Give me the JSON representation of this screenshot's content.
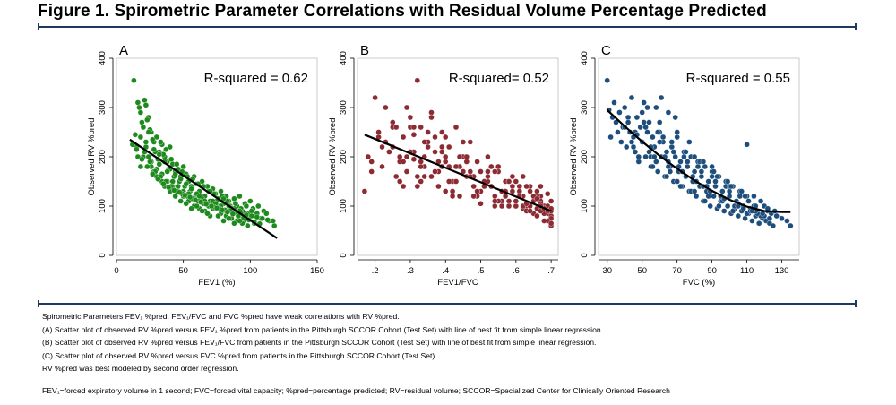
{
  "figure": {
    "title": "Figure 1. Spirometric Parameter Correlations with Residual Volume Percentage Predicted"
  },
  "chart_data": [
    {
      "type": "scatter",
      "panel_label": "A",
      "annotation": "R-squared = 0.62",
      "xlabel": "FEV1 (%)",
      "ylabel": "Observed RV %pred",
      "xlim": [
        0,
        150
      ],
      "ylim": [
        0,
        400
      ],
      "xticks": [
        0,
        50,
        100,
        150
      ],
      "xtick_labels": [
        "0",
        "50",
        "100",
        "150"
      ],
      "yticks": [
        0,
        100,
        200,
        300,
        400
      ],
      "ytick_labels": [
        "0",
        "100",
        "200",
        "300",
        "400"
      ],
      "point_color": "#1e8a1e",
      "fit": {
        "kind": "linear",
        "x": [
          10,
          120
        ],
        "y": [
          235,
          35
        ]
      },
      "x": [
        13,
        16,
        18,
        20,
        22,
        24,
        26,
        28,
        30,
        32,
        34,
        36,
        38,
        40,
        42,
        44,
        46,
        48,
        50,
        52,
        54,
        56,
        58,
        60,
        62,
        64,
        66,
        68,
        70,
        72,
        74,
        76,
        78,
        80,
        82,
        84,
        86,
        88,
        90,
        92,
        94,
        96,
        98,
        100,
        102,
        104,
        106,
        108,
        110,
        112,
        114,
        118,
        14,
        17,
        19,
        21,
        23,
        25,
        27,
        29,
        31,
        33,
        35,
        37,
        39,
        41,
        43,
        45,
        47,
        49,
        51,
        53,
        55,
        57,
        59,
        61,
        63,
        65,
        67,
        69,
        71,
        73,
        75,
        77,
        79,
        81,
        83,
        85,
        87,
        89,
        91,
        93,
        95,
        97,
        99,
        101,
        103,
        105,
        15,
        18,
        20,
        22,
        24,
        26,
        28,
        30,
        32,
        34,
        36,
        38,
        40,
        42,
        44,
        46,
        48,
        50,
        52,
        54,
        56,
        58,
        60,
        62,
        64,
        66,
        68,
        70,
        72,
        74,
        76,
        78,
        80,
        82,
        84,
        86,
        88,
        90,
        92,
        94,
        96,
        98,
        16,
        18,
        20,
        22,
        24,
        26,
        28,
        30,
        32,
        34,
        36,
        38,
        40,
        42,
        44,
        46,
        48,
        50,
        52,
        54,
        56,
        58,
        60,
        62,
        64,
        66,
        68,
        70,
        72,
        74,
        76,
        78,
        80,
        82,
        84,
        86,
        88,
        90,
        92,
        94,
        21,
        25,
        29,
        33,
        37,
        41,
        45,
        49,
        53,
        57,
        61,
        65,
        69,
        73,
        77,
        81,
        85,
        89,
        93,
        97,
        101,
        105,
        109,
        113,
        117,
        12,
        15,
        19,
        23,
        27,
        31,
        35,
        39,
        43,
        47,
        51,
        55,
        59,
        63,
        67,
        71,
        75,
        79,
        83,
        87,
        91,
        95,
        99,
        103,
        107
      ],
      "y": [
        355,
        310,
        290,
        260,
        305,
        280,
        250,
        230,
        240,
        210,
        225,
        200,
        190,
        220,
        185,
        170,
        175,
        160,
        180,
        165,
        150,
        140,
        160,
        145,
        130,
        150,
        120,
        140,
        110,
        135,
        125,
        115,
        130,
        105,
        120,
        110,
        95,
        115,
        100,
        120,
        90,
        105,
        85,
        110,
        95,
        80,
        100,
        75,
        90,
        85,
        70,
        60,
        245,
        300,
        270,
        315,
        275,
        255,
        235,
        210,
        195,
        230,
        205,
        215,
        175,
        195,
        160,
        185,
        150,
        170,
        140,
        160,
        130,
        155,
        120,
        145,
        115,
        140,
        105,
        130,
        100,
        125,
        110,
        95,
        120,
        90,
        110,
        100,
        85,
        105,
        80,
        95,
        70,
        100,
        75,
        90,
        65,
        85,
        220,
        240,
        200,
        220,
        250,
        190,
        215,
        175,
        205,
        165,
        190,
        150,
        175,
        140,
        165,
        130,
        155,
        120,
        145,
        110,
        135,
        100,
        125,
        95,
        115,
        90,
        105,
        80,
        110,
        95,
        100,
        85,
        115,
        80,
        100,
        75,
        95,
        70,
        90,
        65,
        85,
        60,
        200,
        180,
        260,
        230,
        200,
        180,
        170,
        160,
        185,
        150,
        140,
        170,
        130,
        150,
        120,
        140,
        110,
        130,
        105,
        125,
        95,
        115,
        100,
        120,
        90,
        110,
        85,
        130,
        95,
        105,
        80,
        100,
        70,
        90,
        75,
        95,
        65,
        85,
        70,
        80,
        210,
        190,
        170,
        160,
        150,
        140,
        130,
        125,
        120,
        115,
        110,
        105,
        100,
        98,
        95,
        92,
        90,
        88,
        85,
        82,
        80,
        78,
        75,
        72,
        70,
        225,
        215,
        195,
        180,
        165,
        155,
        145,
        138,
        132,
        128,
        122,
        118,
        112,
        108,
        104,
        100,
        96,
        92,
        88,
        84,
        80,
        76,
        72,
        68,
        64
      ]
    },
    {
      "type": "scatter",
      "panel_label": "B",
      "annotation": "R-squared= 0.52",
      "xlabel": "FEV1/FVC",
      "ylabel": "Observed RV %pred",
      "xlim": [
        0.15,
        0.72
      ],
      "ylim": [
        0,
        400
      ],
      "xticks": [
        0.2,
        0.3,
        0.4,
        0.5,
        0.6,
        0.7
      ],
      "xtick_labels": [
        ".2",
        ".3",
        ".4",
        ".5",
        ".6",
        ".7"
      ],
      "yticks": [
        0,
        100,
        200,
        300,
        400
      ],
      "ytick_labels": [
        "0",
        "100",
        "200",
        "300",
        "400"
      ],
      "point_color": "#8c2b32",
      "fit": {
        "kind": "linear",
        "x": [
          0.17,
          0.7
        ],
        "y": [
          245,
          90
        ]
      },
      "x": [
        0.17,
        0.18,
        0.19,
        0.2,
        0.21,
        0.22,
        0.23,
        0.24,
        0.25,
        0.26,
        0.27,
        0.28,
        0.29,
        0.3,
        0.31,
        0.32,
        0.33,
        0.34,
        0.35,
        0.36,
        0.37,
        0.38,
        0.39,
        0.4,
        0.41,
        0.42,
        0.43,
        0.44,
        0.45,
        0.46,
        0.47,
        0.48,
        0.49,
        0.5,
        0.51,
        0.52,
        0.53,
        0.54,
        0.55,
        0.56,
        0.57,
        0.58,
        0.59,
        0.6,
        0.61,
        0.62,
        0.63,
        0.64,
        0.65,
        0.66,
        0.67,
        0.68,
        0.69,
        0.7,
        0.19,
        0.22,
        0.25,
        0.28,
        0.31,
        0.34,
        0.37,
        0.4,
        0.43,
        0.46,
        0.49,
        0.52,
        0.55,
        0.58,
        0.61,
        0.64,
        0.67,
        0.7,
        0.21,
        0.24,
        0.27,
        0.3,
        0.33,
        0.36,
        0.39,
        0.42,
        0.45,
        0.48,
        0.51,
        0.54,
        0.57,
        0.6,
        0.63,
        0.66,
        0.69,
        0.23,
        0.26,
        0.29,
        0.32,
        0.35,
        0.38,
        0.41,
        0.44,
        0.47,
        0.5,
        0.53,
        0.56,
        0.59,
        0.62,
        0.65,
        0.68,
        0.7,
        0.25,
        0.28,
        0.31,
        0.34,
        0.37,
        0.4,
        0.43,
        0.46,
        0.49,
        0.52,
        0.55,
        0.58,
        0.61,
        0.64,
        0.67,
        0.7,
        0.27,
        0.3,
        0.33,
        0.36,
        0.39,
        0.42,
        0.45,
        0.48,
        0.51,
        0.54,
        0.57,
        0.6,
        0.63,
        0.66,
        0.69,
        0.29,
        0.32,
        0.35,
        0.38,
        0.41,
        0.44,
        0.47,
        0.5,
        0.53,
        0.56,
        0.59,
        0.62,
        0.65,
        0.68,
        0.7,
        0.31,
        0.34,
        0.37,
        0.4,
        0.43,
        0.46,
        0.49,
        0.52,
        0.55,
        0.58,
        0.61,
        0.64,
        0.67,
        0.7,
        0.33,
        0.36,
        0.39,
        0.42,
        0.45,
        0.48,
        0.51,
        0.54,
        0.57,
        0.6,
        0.63,
        0.66,
        0.69,
        0.65,
        0.66,
        0.67,
        0.68,
        0.69,
        0.7,
        0.62,
        0.64,
        0.66,
        0.68,
        0.7,
        0.6,
        0.63,
        0.67,
        0.69
      ],
      "y": [
        130,
        200,
        190,
        320,
        250,
        180,
        230,
        210,
        270,
        160,
        190,
        240,
        300,
        280,
        210,
        355,
        260,
        180,
        230,
        290,
        210,
        170,
        250,
        190,
        220,
        150,
        260,
        180,
        200,
        160,
        230,
        140,
        190,
        170,
        150,
        200,
        140,
        120,
        170,
        130,
        150,
        110,
        160,
        100,
        140,
        120,
        90,
        130,
        110,
        95,
        120,
        100,
        85,
        110,
        170,
        220,
        260,
        140,
        195,
        160,
        240,
        130,
        180,
        200,
        120,
        150,
        180,
        100,
        130,
        140,
        110,
        95,
        240,
        210,
        200,
        260,
        150,
        280,
        180,
        120,
        230,
        160,
        140,
        170,
        120,
        150,
        100,
        130,
        90,
        300,
        260,
        170,
        140,
        220,
        190,
        150,
        200,
        170,
        130,
        180,
        110,
        140,
        160,
        120,
        100,
        80,
        220,
        190,
        245,
        200,
        170,
        240,
        150,
        190,
        130,
        160,
        110,
        150,
        120,
        100,
        140,
        90,
        150,
        210,
        180,
        160,
        220,
        130,
        170,
        120,
        150,
        100,
        130,
        110,
        140,
        120,
        100,
        200,
        160,
        250,
        140,
        180,
        120,
        160,
        105,
        140,
        100,
        130,
        95,
        120,
        85,
        75,
        260,
        230,
        170,
        200,
        150,
        190,
        130,
        170,
        110,
        150,
        120,
        100,
        90,
        95,
        190,
        160,
        210,
        130,
        170,
        120,
        140,
        110,
        130,
        100,
        90,
        80,
        70,
        85,
        115,
        105,
        95,
        125,
        60,
        100,
        90,
        80,
        70,
        65,
        110,
        105,
        100,
        90
      ]
    },
    {
      "type": "scatter",
      "panel_label": "C",
      "annotation": "R-squared = 0.55",
      "xlabel": "FVC (%)",
      "ylabel": "Observed RV %pred",
      "xlim": [
        25,
        140
      ],
      "ylim": [
        0,
        400
      ],
      "xticks": [
        30,
        50,
        70,
        90,
        110,
        130
      ],
      "xtick_labels": [
        "30",
        "50",
        "70",
        "90",
        "110",
        "130"
      ],
      "yticks": [
        0,
        100,
        200,
        300,
        400
      ],
      "ytick_labels": [
        "0",
        "100",
        "200",
        "300",
        "400"
      ],
      "point_color": "#1d4e7c",
      "fit": {
        "kind": "quadratic",
        "x": [
          30,
          40,
          50,
          60,
          70,
          80,
          90,
          100,
          110,
          120,
          130,
          135
        ],
        "y": [
          295,
          262,
          231,
          202,
          176,
          152,
          131,
          113,
          99,
          90,
          88,
          88
        ]
      },
      "x": [
        30,
        31,
        32,
        33,
        34,
        35,
        36,
        37,
        38,
        39,
        40,
        41,
        42,
        43,
        44,
        45,
        46,
        47,
        48,
        49,
        50,
        51,
        52,
        53,
        54,
        55,
        56,
        57,
        58,
        59,
        60,
        61,
        62,
        63,
        64,
        65,
        66,
        67,
        68,
        69,
        70,
        71,
        72,
        73,
        74,
        75,
        76,
        77,
        78,
        79,
        80,
        81,
        82,
        83,
        84,
        85,
        86,
        87,
        88,
        89,
        90,
        91,
        92,
        93,
        94,
        95,
        96,
        97,
        98,
        99,
        100,
        101,
        102,
        103,
        104,
        105,
        106,
        107,
        108,
        109,
        110,
        111,
        112,
        113,
        114,
        115,
        116,
        117,
        118,
        119,
        120,
        121,
        122,
        123,
        124,
        125,
        127,
        130,
        133,
        135,
        42,
        46,
        50,
        54,
        58,
        62,
        66,
        70,
        74,
        78,
        82,
        86,
        90,
        94,
        98,
        102,
        106,
        110,
        114,
        118,
        122,
        126,
        44,
        48,
        52,
        56,
        60,
        64,
        68,
        72,
        76,
        80,
        84,
        88,
        92,
        96,
        100,
        104,
        108,
        112,
        116,
        40,
        45,
        50,
        55,
        60,
        65,
        70,
        75,
        80,
        85,
        90,
        95,
        100,
        105,
        110,
        115,
        120,
        47,
        51,
        55,
        59,
        63,
        67,
        71,
        75,
        79,
        83,
        87,
        91,
        95,
        99,
        103,
        107,
        111,
        115,
        119,
        123,
        53,
        57,
        61,
        65,
        69,
        73,
        77,
        81,
        85,
        89,
        93,
        97,
        101,
        105,
        109,
        113
      ],
      "y": [
        355,
        295,
        240,
        280,
        310,
        270,
        250,
        290,
        230,
        260,
        300,
        220,
        280,
        250,
        320,
        240,
        210,
        280,
        190,
        260,
        230,
        310,
        200,
        250,
        270,
        180,
        240,
        220,
        300,
        170,
        250,
        200,
        230,
        160,
        210,
        290,
        180,
        220,
        150,
        200,
        240,
        170,
        190,
        140,
        210,
        160,
        180,
        130,
        200,
        150,
        170,
        120,
        190,
        140,
        160,
        110,
        180,
        130,
        150,
        100,
        170,
        120,
        140,
        95,
        160,
        110,
        130,
        90,
        150,
        100,
        120,
        85,
        140,
        95,
        110,
        80,
        130,
        90,
        100,
        75,
        225,
        85,
        95,
        70,
        120,
        80,
        90,
        65,
        110,
        75,
        100,
        70,
        90,
        65,
        85,
        60,
        80,
        75,
        70,
        60,
        270,
        250,
        230,
        210,
        190,
        240,
        170,
        150,
        200,
        130,
        180,
        110,
        160,
        100,
        140,
        90,
        120,
        85,
        100,
        80,
        95,
        90,
        230,
        200,
        260,
        180,
        230,
        160,
        210,
        140,
        190,
        130,
        170,
        120,
        150,
        110,
        130,
        100,
        95,
        90,
        85,
        260,
        220,
        290,
        200,
        270,
        180,
        250,
        160,
        200,
        140,
        180,
        120,
        140,
        105,
        120,
        100,
        80,
        245,
        270,
        220,
        250,
        200,
        230,
        180,
        210,
        160,
        190,
        140,
        170,
        120,
        150,
        100,
        130,
        110,
        90,
        85,
        75,
        300,
        200,
        320,
        190,
        280,
        170,
        230,
        150,
        190,
        130,
        160,
        115,
        140,
        100,
        120,
        90
      ]
    }
  ],
  "caption": {
    "lines": [
      "Spirometric Parameters FEV₁ %pred, FEV₁/FVC and FVC %pred have weak correlations with RV %pred.",
      "(A) Scatter plot of observed RV %pred versus FEV₁ %pred from patients in the Pittsburgh SCCOR Cohort (Test Set) with line of best fit from simple linear regression.",
      "(B) Scatter plot of observed RV %pred versus FEV₁/FVC from patients in the Pittsburgh SCCOR Cohort (Test Set) with line of best fit from simple linear regression.",
      "(C) Scatter plot of observed RV %pred versus FVC %pred from patients in the Pittsburgh SCCOR Cohort (Test Set).",
      "RV %pred was best modeled by second order regression."
    ],
    "footnote": "FEV₁=forced expiratory volume in 1 second; FVC=forced vital capacity; %pred=percentage predicted; RV=residual volume; SCCOR=Specialized Center for Clinically Oriented Research"
  }
}
